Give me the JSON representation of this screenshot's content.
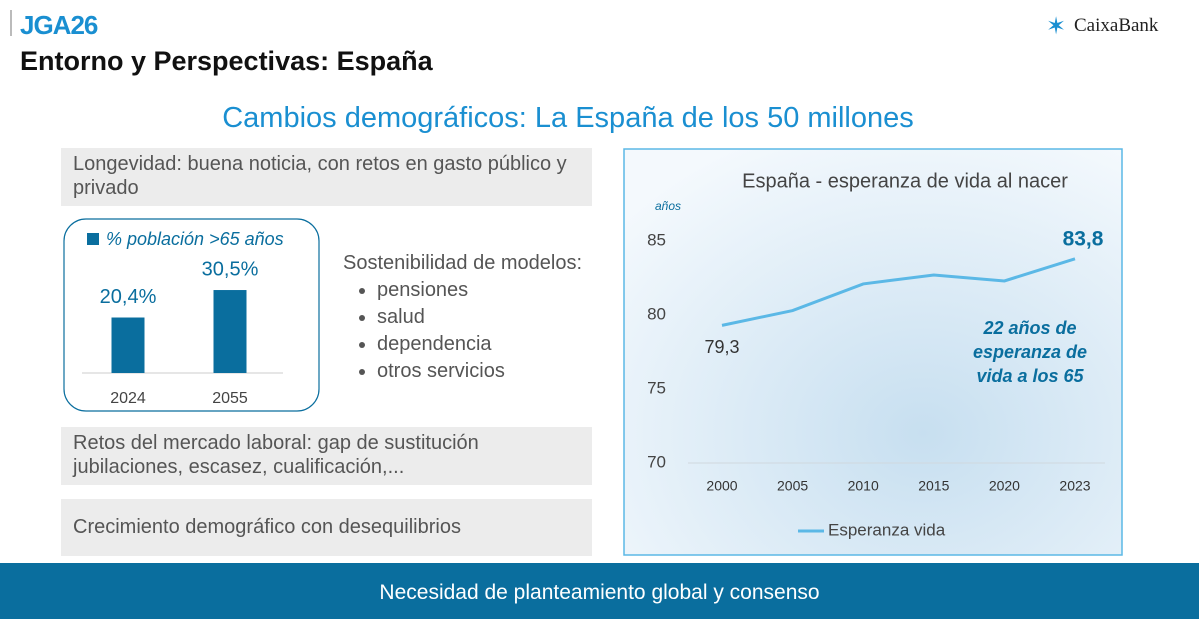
{
  "header": {
    "logo": "JGA26",
    "title": "Entorno y Perspectivas: España",
    "brand": "CaixaBank"
  },
  "subtitle": "Cambios demográficos: La España de los 50 millones",
  "boxes": [
    "Longevidad: buena noticia, con retos en gasto público y privado",
    "Retos del mercado laboral: gap de sustitución jubilaciones, escasez, cualificación,...",
    "Crecimiento demográfico con desequilibrios"
  ],
  "sustainability": {
    "title": "Sostenibilidad de modelos:",
    "items": [
      "pensiones",
      "salud",
      "dependencia",
      "otros servicios"
    ]
  },
  "footer": "Necesidad de planteamiento global y consenso",
  "chart_data": [
    {
      "type": "bar",
      "categories": [
        "2024",
        "2055"
      ],
      "series": [
        {
          "name": "% población >65 años",
          "color": "#0a6e9e",
          "values": [
            20.4,
            30.5
          ],
          "value_labels": [
            "20,4%",
            "30,5%"
          ]
        }
      ]
    },
    {
      "type": "line",
      "title": "España - esperanza de vida al nacer",
      "y_label": "años",
      "categories": [
        "2000",
        "2005",
        "2010",
        "2015",
        "2020",
        "2023"
      ],
      "series": [
        {
          "name": "Esperanza vida",
          "color": "#5bb8e6",
          "values": [
            79.3,
            80.3,
            82.1,
            82.7,
            82.3,
            83.8
          ],
          "value_labels": [
            "79,3",
            null,
            null,
            null,
            null,
            "83,8"
          ]
        }
      ],
      "ylim": [
        70,
        85
      ],
      "yticks": [
        70,
        75,
        80,
        85
      ],
      "grid": false,
      "annotation": [
        "22 años de",
        "esperanza de",
        "vida a los 65"
      ]
    }
  ]
}
